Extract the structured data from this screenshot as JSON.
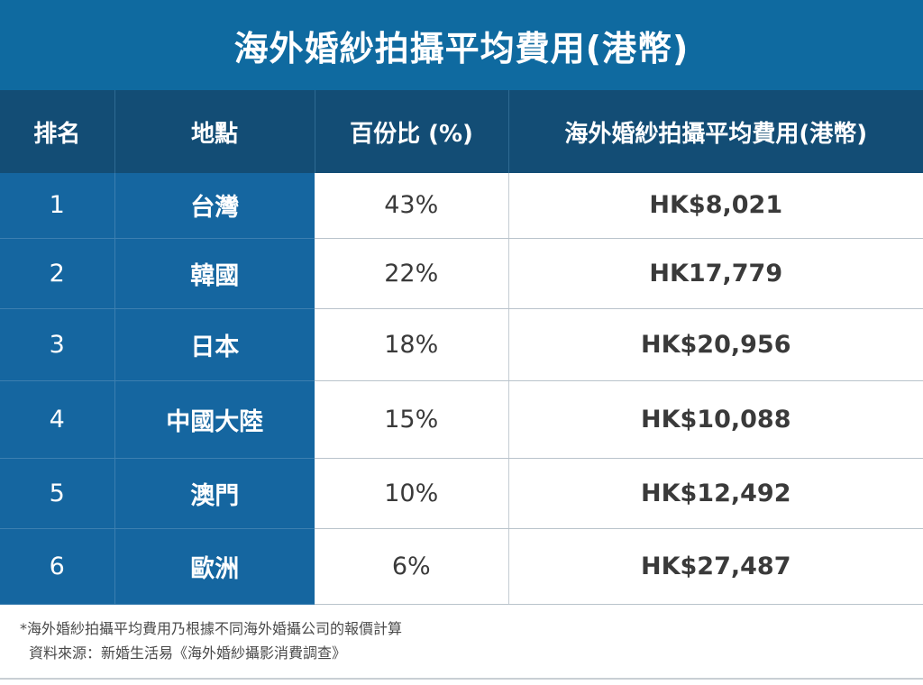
{
  "title": "海外婚紗拍攝平均費用(港幣)",
  "chart_data": {
    "type": "table",
    "columns": [
      "排名",
      "地點",
      "百份比 (%)",
      "海外婚紗拍攝平均費用(港幣)"
    ],
    "rows": [
      {
        "rank": "1",
        "location": "台灣",
        "percent": "43%",
        "cost": "HK$8,021"
      },
      {
        "rank": "2",
        "location": "韓國",
        "percent": "22%",
        "cost": "HK17,779"
      },
      {
        "rank": "3",
        "location": "日本",
        "percent": "18%",
        "cost": "HK$20,956"
      },
      {
        "rank": "4",
        "location": "中國大陸",
        "percent": "15%",
        "cost": "HK$10,088"
      },
      {
        "rank": "5",
        "location": "澳門",
        "percent": "10%",
        "cost": "HK$12,492"
      },
      {
        "rank": "6",
        "location": "歐洲",
        "percent": "6%",
        "cost": "HK$27,487"
      }
    ]
  },
  "footnote": {
    "line1": "*海外婚紗拍攝平均費用乃根據不同海外婚攝公司的報價計算",
    "line2": "資料來源：新婚生活易《海外婚紗攝影消費調查》"
  },
  "colors": {
    "title_bg": "#0f6aa0",
    "header_bg": "#134d75",
    "side_col_bg": "#1566a0",
    "body_text": "#3a3a3a"
  }
}
